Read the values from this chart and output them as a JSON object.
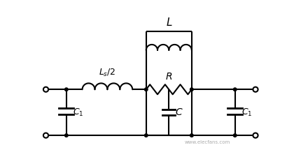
{
  "bg_color": "#ffffff",
  "line_color": "#000000",
  "line_width": 1.5,
  "fig_width": 4.2,
  "fig_height": 2.38,
  "dpi": 100,
  "watermark": "www.elecfans.com"
}
